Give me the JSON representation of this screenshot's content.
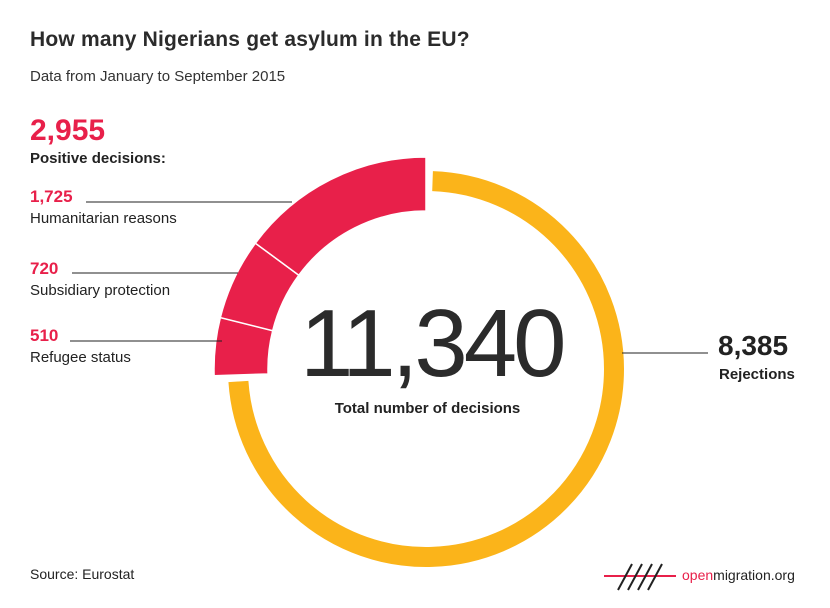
{
  "title": "How many Nigerians get asylum in the EU?",
  "subtitle": "Data from January to September 2015",
  "source": "Source: Eurostat",
  "brand": {
    "open": "open",
    "rest": "migration.org"
  },
  "colors": {
    "positive": "#e8204a",
    "rejection": "#fbb41a",
    "text": "#222222"
  },
  "chart_data": {
    "type": "pie",
    "total": {
      "value": "11,340",
      "label": "Total number of decisions"
    },
    "positive_total": {
      "value": "2,955",
      "label": "Positive decisions:"
    },
    "slices": [
      {
        "label": "Refugee status",
        "value": 510,
        "value_text": "510",
        "group": "positive"
      },
      {
        "label": "Subsidiary protection",
        "value": 720,
        "value_text": "720",
        "group": "positive"
      },
      {
        "label": "Humanitarian reasons",
        "value": 1725,
        "value_text": "1,725",
        "group": "positive"
      },
      {
        "label": "Rejections",
        "value": 8385,
        "value_text": "8,385",
        "group": "rejection"
      }
    ]
  }
}
